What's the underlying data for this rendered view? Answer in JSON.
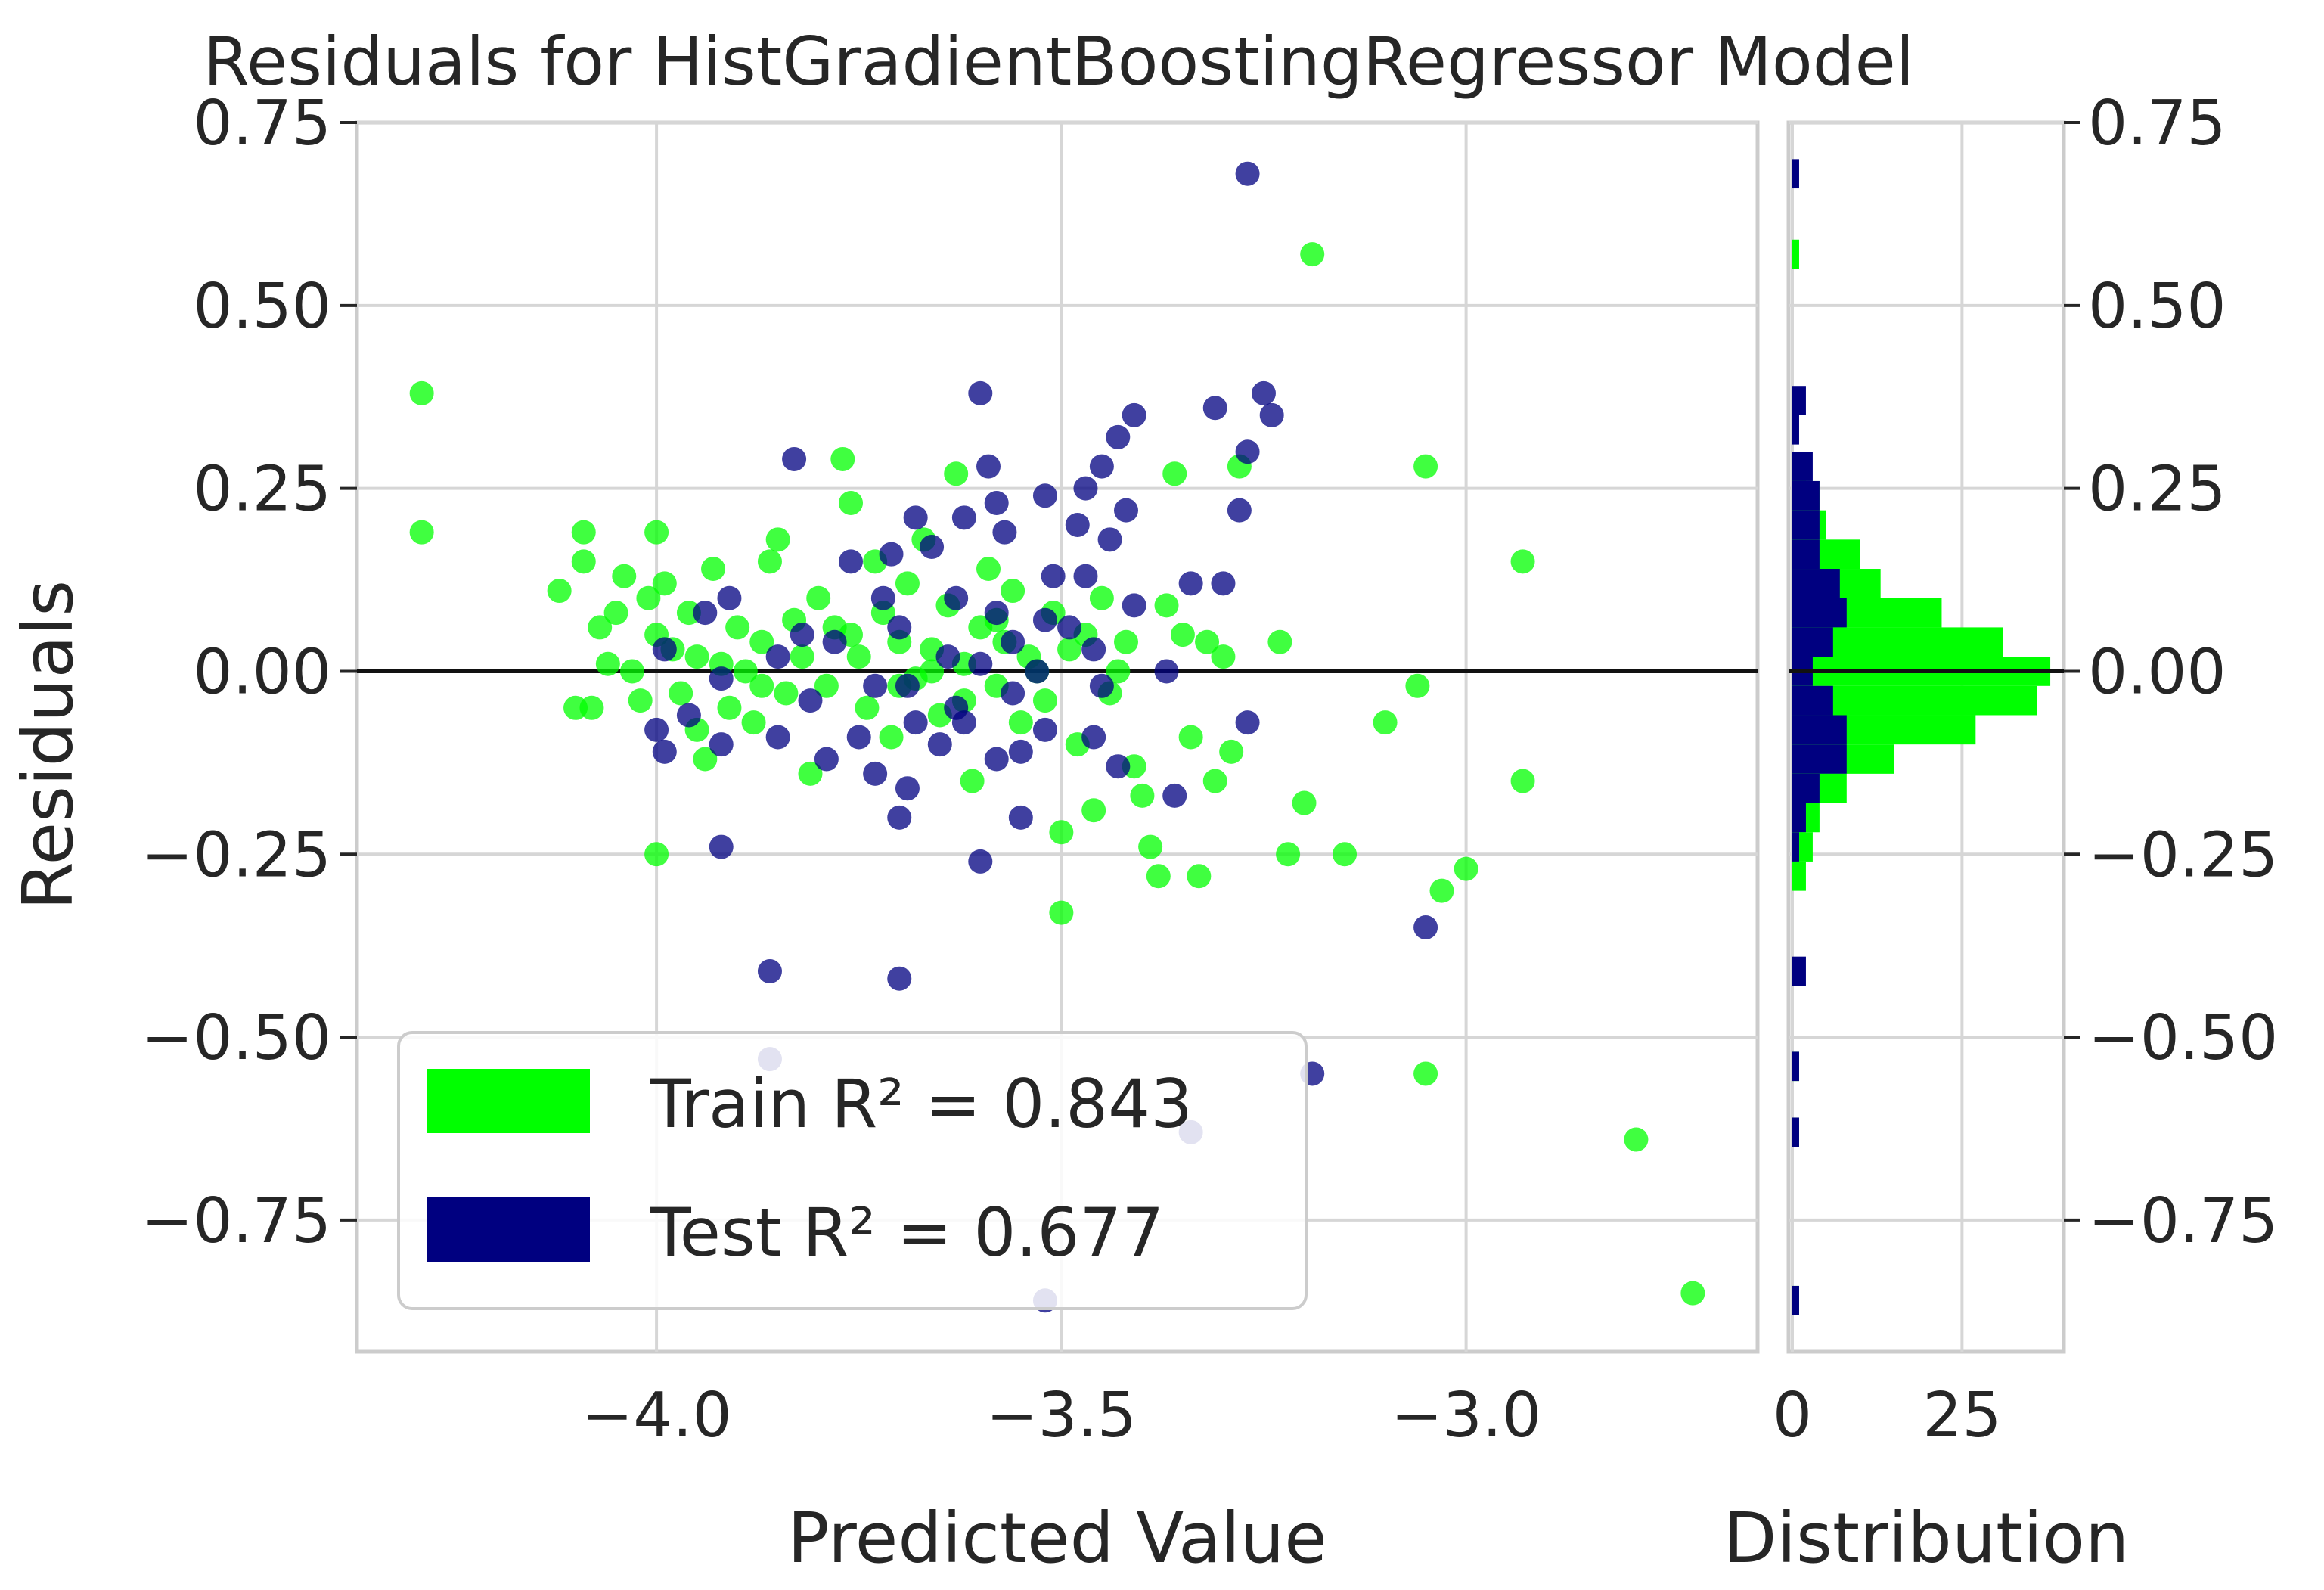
{
  "chart_data": {
    "type": "scatter",
    "title": "Residuals for HistGradientBoostingRegressor Model",
    "xlabel": "Predicted Value",
    "ylabel": "Residuals",
    "hist_xlabel": "Distribution",
    "xlim": [
      -4.37,
      -2.64
    ],
    "ylim": [
      -0.93,
      0.75
    ],
    "xticks": [
      -4.0,
      -3.5,
      -3.0
    ],
    "xtick_labels": [
      "−4.0",
      "−3.5",
      "−3.0"
    ],
    "yticks": [
      0.75,
      0.5,
      0.25,
      0.0,
      -0.25,
      -0.5,
      -0.75
    ],
    "ytick_labels": [
      "0.75",
      "0.50",
      "0.25",
      "0.00",
      "−0.25",
      "−0.50",
      "−0.75"
    ],
    "hist_xlim": [
      0,
      40
    ],
    "hist_xticks": [
      0,
      25
    ],
    "hist_xtick_labels": [
      "0",
      "25"
    ],
    "grid": true,
    "zero_line": true,
    "legend_position": "lower-left",
    "colors": {
      "train": "#00ff00",
      "test": "#000080",
      "zero_line": "#111111",
      "grid": "#d6d6d6",
      "frame": "#cccccc"
    },
    "series": [
      {
        "name": "Train",
        "r2_label": "Train R² = 0.843",
        "points": [
          [
            -4.29,
            0.38
          ],
          [
            -4.29,
            0.19
          ],
          [
            -4.09,
            0.19
          ],
          [
            -4.0,
            0.19
          ],
          [
            -4.12,
            0.11
          ],
          [
            -4.09,
            0.15
          ],
          [
            -4.07,
            0.06
          ],
          [
            -4.06,
            0.01
          ],
          [
            -4.1,
            -0.05
          ],
          [
            -4.08,
            -0.05
          ],
          [
            -4.05,
            0.08
          ],
          [
            -4.04,
            0.13
          ],
          [
            -4.03,
            0.0
          ],
          [
            -4.02,
            -0.04
          ],
          [
            -4.01,
            0.1
          ],
          [
            -4.0,
            0.05
          ],
          [
            -4.0,
            -0.25
          ],
          [
            -3.99,
            0.12
          ],
          [
            -3.98,
            0.03
          ],
          [
            -3.97,
            -0.03
          ],
          [
            -3.96,
            0.08
          ],
          [
            -3.95,
            -0.08
          ],
          [
            -3.94,
            -0.12
          ],
          [
            -3.93,
            0.14
          ],
          [
            -3.92,
            0.01
          ],
          [
            -3.91,
            -0.05
          ],
          [
            -3.9,
            0.06
          ],
          [
            -3.89,
            0.0
          ],
          [
            -3.88,
            -0.07
          ],
          [
            -3.87,
            0.04
          ],
          [
            -3.86,
            0.15
          ],
          [
            -3.85,
            0.18
          ],
          [
            -3.84,
            -0.03
          ],
          [
            -3.83,
            0.07
          ],
          [
            -3.82,
            0.02
          ],
          [
            -3.81,
            -0.14
          ],
          [
            -3.8,
            0.1
          ],
          [
            -3.79,
            -0.02
          ],
          [
            -3.78,
            0.06
          ],
          [
            -3.77,
            0.29
          ],
          [
            -3.76,
            0.23
          ],
          [
            -3.75,
            0.02
          ],
          [
            -3.74,
            -0.05
          ],
          [
            -3.73,
            0.15
          ],
          [
            -3.72,
            0.08
          ],
          [
            -3.71,
            -0.09
          ],
          [
            -3.7,
            0.04
          ],
          [
            -3.69,
            0.12
          ],
          [
            -3.68,
            -0.01
          ],
          [
            -3.67,
            0.18
          ],
          [
            -3.66,
            0.03
          ],
          [
            -3.65,
            -0.06
          ],
          [
            -3.64,
            0.09
          ],
          [
            -3.63,
            0.27
          ],
          [
            -3.62,
            0.01
          ],
          [
            -3.61,
            -0.15
          ],
          [
            -3.6,
            0.06
          ],
          [
            -3.59,
            0.14
          ],
          [
            -3.58,
            -0.02
          ],
          [
            -3.57,
            0.04
          ],
          [
            -3.56,
            0.11
          ],
          [
            -3.55,
            -0.07
          ],
          [
            -3.54,
            0.02
          ],
          [
            -3.53,
            0.0
          ],
          [
            -3.52,
            -0.04
          ],
          [
            -3.51,
            0.08
          ],
          [
            -3.5,
            -0.22
          ],
          [
            -3.5,
            -0.33
          ],
          [
            -3.49,
            0.03
          ],
          [
            -3.48,
            -0.1
          ],
          [
            -3.47,
            0.05
          ],
          [
            -3.46,
            -0.19
          ],
          [
            -3.45,
            0.1
          ],
          [
            -3.44,
            -0.03
          ],
          [
            -3.43,
            0.0
          ],
          [
            -3.42,
            0.04
          ],
          [
            -3.41,
            -0.13
          ],
          [
            -3.4,
            -0.17
          ],
          [
            -3.39,
            -0.24
          ],
          [
            -3.38,
            -0.28
          ],
          [
            -3.37,
            0.09
          ],
          [
            -3.36,
            0.27
          ],
          [
            -3.35,
            0.05
          ],
          [
            -3.34,
            -0.09
          ],
          [
            -3.33,
            -0.28
          ],
          [
            -3.32,
            0.04
          ],
          [
            -3.31,
            -0.15
          ],
          [
            -3.3,
            0.02
          ],
          [
            -3.29,
            -0.11
          ],
          [
            -3.28,
            0.28
          ],
          [
            -3.23,
            0.04
          ],
          [
            -3.22,
            -0.25
          ],
          [
            -3.2,
            -0.18
          ],
          [
            -3.19,
            0.57
          ],
          [
            -3.15,
            -0.25
          ],
          [
            -3.1,
            -0.07
          ],
          [
            -3.06,
            -0.02
          ],
          [
            -3.05,
            0.28
          ],
          [
            -3.05,
            -0.55
          ],
          [
            -3.03,
            -0.3
          ],
          [
            -3.0,
            -0.27
          ],
          [
            -2.93,
            0.15
          ],
          [
            -2.93,
            -0.15
          ],
          [
            -2.79,
            -0.64
          ],
          [
            -2.72,
            -0.85
          ],
          [
            -3.58,
            0.07
          ],
          [
            -3.62,
            -0.04
          ],
          [
            -3.7,
            -0.02
          ],
          [
            -3.76,
            0.05
          ],
          [
            -3.87,
            -0.02
          ],
          [
            -3.95,
            0.02
          ],
          [
            -3.66,
            0.0
          ]
        ]
      },
      {
        "name": "Test",
        "r2_label": "Test R² = 0.677",
        "points": [
          [
            -3.27,
            0.68
          ],
          [
            -3.6,
            0.38
          ],
          [
            -3.25,
            0.38
          ],
          [
            -3.24,
            0.35
          ],
          [
            -3.31,
            0.36
          ],
          [
            -3.41,
            0.35
          ],
          [
            -3.43,
            0.32
          ],
          [
            -3.27,
            0.3
          ],
          [
            -3.83,
            0.29
          ],
          [
            -3.59,
            0.28
          ],
          [
            -3.45,
            0.28
          ],
          [
            -3.47,
            0.25
          ],
          [
            -3.52,
            0.24
          ],
          [
            -3.58,
            0.23
          ],
          [
            -3.42,
            0.22
          ],
          [
            -3.28,
            0.22
          ],
          [
            -3.62,
            0.21
          ],
          [
            -3.68,
            0.21
          ],
          [
            -3.48,
            0.2
          ],
          [
            -3.57,
            0.19
          ],
          [
            -3.44,
            0.18
          ],
          [
            -3.66,
            0.17
          ],
          [
            -3.71,
            0.16
          ],
          [
            -3.76,
            0.15
          ],
          [
            -3.51,
            0.13
          ],
          [
            -3.47,
            0.13
          ],
          [
            -3.3,
            0.12
          ],
          [
            -3.34,
            0.12
          ],
          [
            -3.72,
            0.1
          ],
          [
            -3.63,
            0.1
          ],
          [
            -3.41,
            0.09
          ],
          [
            -3.91,
            0.1
          ],
          [
            -3.94,
            0.08
          ],
          [
            -3.58,
            0.08
          ],
          [
            -3.52,
            0.07
          ],
          [
            -3.49,
            0.06
          ],
          [
            -3.7,
            0.06
          ],
          [
            -3.82,
            0.05
          ],
          [
            -3.78,
            0.04
          ],
          [
            -3.56,
            0.04
          ],
          [
            -3.46,
            0.03
          ],
          [
            -3.99,
            0.03
          ],
          [
            -3.85,
            0.02
          ],
          [
            -3.64,
            0.02
          ],
          [
            -3.6,
            0.01
          ],
          [
            -3.53,
            0.0
          ],
          [
            -3.37,
            0.0
          ],
          [
            -3.92,
            -0.01
          ],
          [
            -3.73,
            -0.02
          ],
          [
            -3.69,
            -0.02
          ],
          [
            -3.45,
            -0.02
          ],
          [
            -3.56,
            -0.03
          ],
          [
            -3.81,
            -0.04
          ],
          [
            -3.63,
            -0.05
          ],
          [
            -3.96,
            -0.06
          ],
          [
            -3.68,
            -0.07
          ],
          [
            -3.62,
            -0.07
          ],
          [
            -3.27,
            -0.07
          ],
          [
            -4.0,
            -0.08
          ],
          [
            -3.52,
            -0.08
          ],
          [
            -3.85,
            -0.09
          ],
          [
            -3.75,
            -0.09
          ],
          [
            -3.46,
            -0.09
          ],
          [
            -3.92,
            -0.1
          ],
          [
            -3.65,
            -0.1
          ],
          [
            -3.55,
            -0.11
          ],
          [
            -3.99,
            -0.11
          ],
          [
            -3.79,
            -0.12
          ],
          [
            -3.58,
            -0.12
          ],
          [
            -3.43,
            -0.13
          ],
          [
            -3.73,
            -0.14
          ],
          [
            -3.69,
            -0.16
          ],
          [
            -3.36,
            -0.17
          ],
          [
            -3.7,
            -0.2
          ],
          [
            -3.55,
            -0.2
          ],
          [
            -3.92,
            -0.24
          ],
          [
            -3.6,
            -0.26
          ],
          [
            -3.05,
            -0.35
          ],
          [
            -3.86,
            -0.41
          ],
          [
            -3.7,
            -0.42
          ],
          [
            -3.86,
            -0.53
          ],
          [
            -3.19,
            -0.55
          ],
          [
            -3.34,
            -0.63
          ],
          [
            -3.52,
            -0.86
          ]
        ]
      }
    ],
    "histogram": {
      "orientation": "horizontal",
      "bins": [
        {
          "y": 0.68,
          "train": 0,
          "test": 1
        },
        {
          "y": 0.57,
          "train": 1,
          "test": 0
        },
        {
          "y": 0.37,
          "train": 0,
          "test": 2
        },
        {
          "y": 0.33,
          "train": 0,
          "test": 1
        },
        {
          "y": 0.28,
          "train": 2,
          "test": 3
        },
        {
          "y": 0.24,
          "train": 4,
          "test": 4
        },
        {
          "y": 0.2,
          "train": 5,
          "test": 4
        },
        {
          "y": 0.16,
          "train": 10,
          "test": 4
        },
        {
          "y": 0.12,
          "train": 13,
          "test": 7
        },
        {
          "y": 0.08,
          "train": 22,
          "test": 8
        },
        {
          "y": 0.04,
          "train": 31,
          "test": 6
        },
        {
          "y": 0.0,
          "train": 38,
          "test": 3
        },
        {
          "y": -0.04,
          "train": 36,
          "test": 6
        },
        {
          "y": -0.08,
          "train": 27,
          "test": 8
        },
        {
          "y": -0.12,
          "train": 15,
          "test": 8
        },
        {
          "y": -0.16,
          "train": 8,
          "test": 4
        },
        {
          "y": -0.2,
          "train": 4,
          "test": 2
        },
        {
          "y": -0.24,
          "train": 3,
          "test": 1
        },
        {
          "y": -0.28,
          "train": 2,
          "test": 0
        },
        {
          "y": -0.41,
          "train": 0,
          "test": 2
        },
        {
          "y": -0.54,
          "train": 1,
          "test": 1
        },
        {
          "y": -0.63,
          "train": 1,
          "test": 1
        },
        {
          "y": -0.86,
          "train": 1,
          "test": 1
        }
      ]
    }
  }
}
